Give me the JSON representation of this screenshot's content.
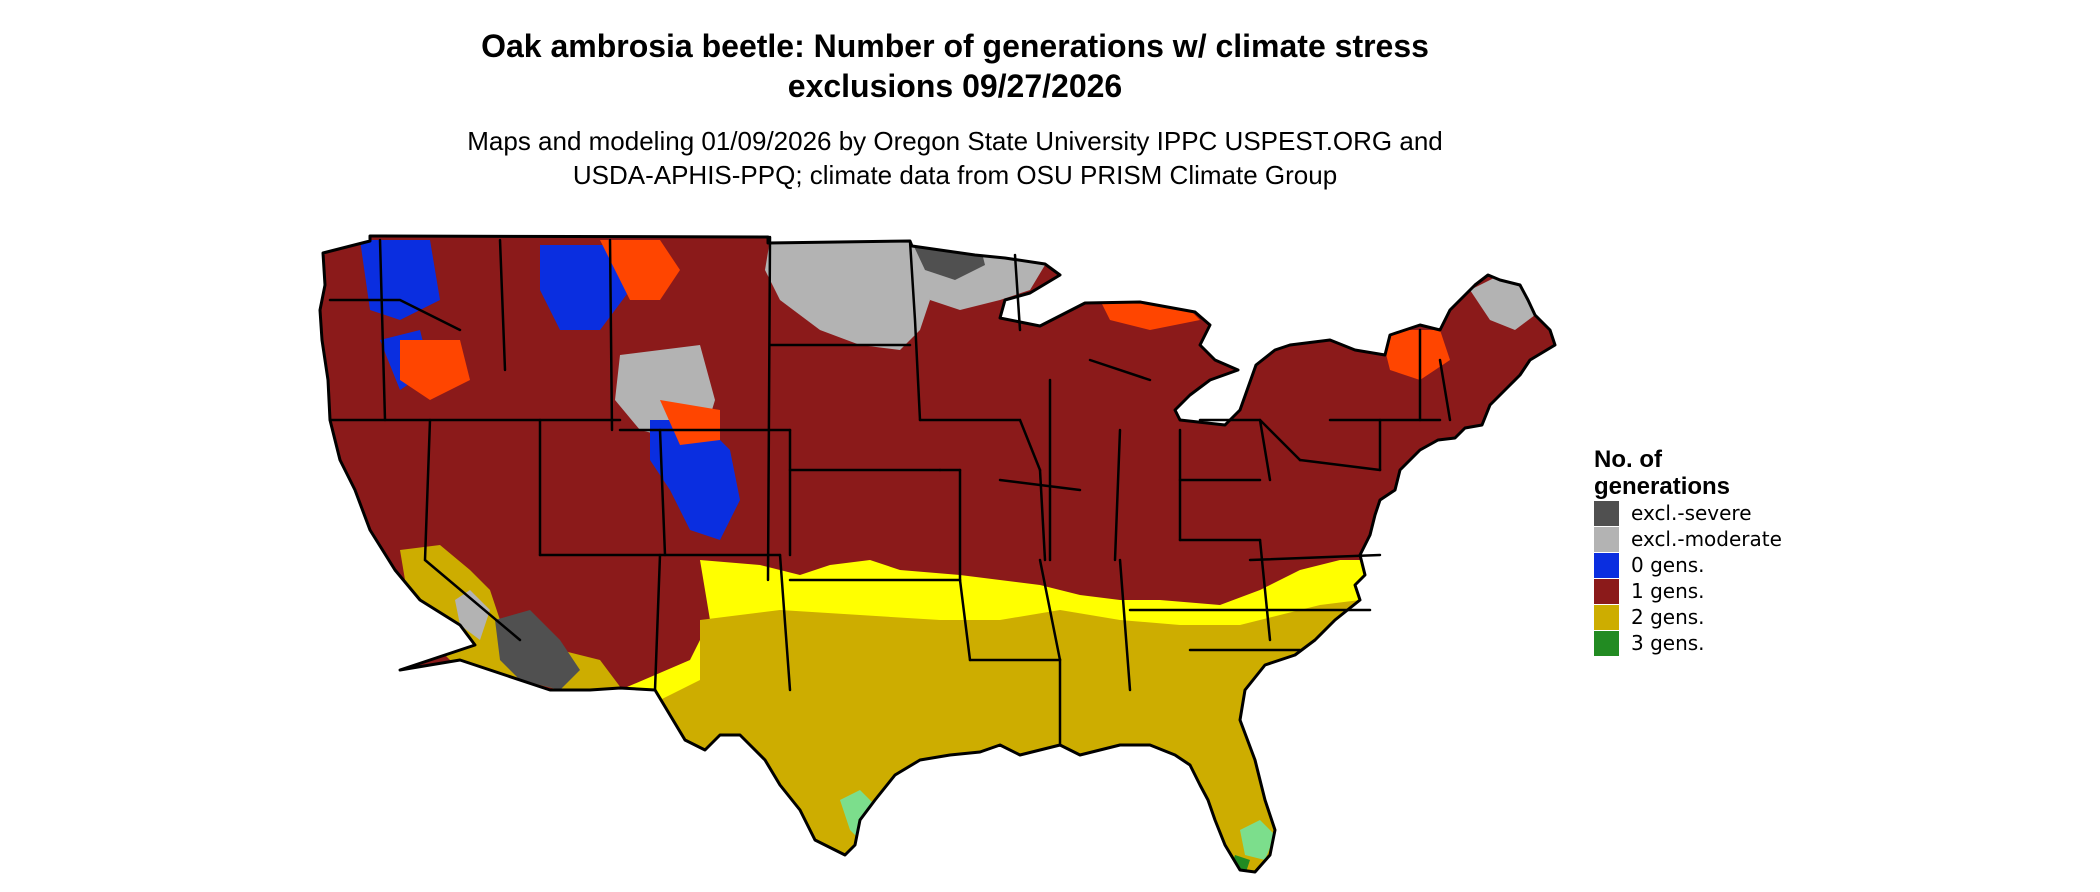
{
  "title": {
    "line1": "Oak ambrosia beetle: Number of generations w/ climate stress",
    "line2": "exclusions 09/27/2026"
  },
  "subtitle": {
    "line1": "Maps and modeling 01/09/2026 by Oregon State University IPPC USPEST.ORG and",
    "line2": "USDA-APHIS-PPQ; climate data from OSU PRISM Climate Group"
  },
  "legend": {
    "title_line1": "No. of",
    "title_line2": "generations",
    "items": [
      {
        "label": "excl.-severe",
        "color": "#505050"
      },
      {
        "label": "excl.-moderate",
        "color": "#b3b3b3"
      },
      {
        "label": "0 gens.",
        "color": "#0a2ee0"
      },
      {
        "label": "1 gens.",
        "color": "#8b1a1a"
      },
      {
        "label": "2 gens.",
        "color": "#cdad00"
      },
      {
        "label": "3 gens.",
        "color": "#228b22"
      }
    ]
  },
  "map_colors": {
    "one_gen_dark": "#8b1a1a",
    "one_gen_light": "#ff4500",
    "two_gen": "#cdad00",
    "two_gen_light": "#ffff00",
    "three_gen_light": "#7cde8c",
    "three_gen": "#228b22",
    "zero_gen": "#0a2ee0",
    "excl_moderate": "#b3b3b3",
    "excl_severe": "#505050"
  }
}
